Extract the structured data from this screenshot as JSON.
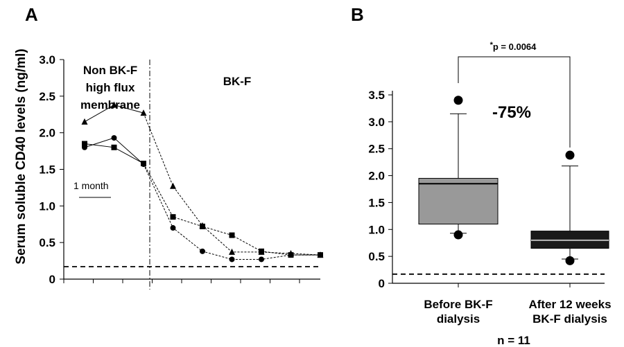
{
  "chart_data": [
    {
      "panel_label": "A",
      "type": "line",
      "ylabel": "Serum soluble CD40 levels (ng/ml)",
      "ylim": [
        0,
        3.0
      ],
      "yticks": [
        "3.0",
        "2.5",
        "2.0",
        "1.5",
        "1.0",
        "0.5",
        "0"
      ],
      "x": [
        0,
        1,
        2,
        3,
        4,
        5,
        6,
        7,
        8
      ],
      "series": [
        {
          "marker": "triangle",
          "values": [
            2.15,
            2.38,
            2.27,
            1.27,
            0.73,
            0.37,
            0.37,
            0.35,
            0.33
          ]
        },
        {
          "marker": "square",
          "values": [
            1.85,
            1.8,
            1.58,
            0.85,
            0.72,
            0.6,
            0.38,
            0.33,
            0.33
          ]
        },
        {
          "marker": "circle",
          "values": [
            1.8,
            1.93,
            1.57,
            0.7,
            0.38,
            0.27,
            0.27,
            0.33,
            0.33
          ]
        }
      ],
      "annotations": {
        "left_region": [
          "Non BK-F",
          "high flux",
          "membrane"
        ],
        "right_region": "BK-F",
        "scale_bar": "1 month"
      },
      "reference_line": 0.17
    },
    {
      "panel_label": "B",
      "type": "box",
      "ylim": [
        0,
        3.5
      ],
      "yticks": [
        "3.5",
        "3.0",
        "2.5",
        "2.0",
        "1.5",
        "1.0",
        "0.5",
        "0"
      ],
      "categories": [
        [
          "Before BK-F",
          "dialysis"
        ],
        [
          "After 12 weeks",
          "BK-F dialysis"
        ]
      ],
      "boxes": [
        {
          "whisker_low": 0.93,
          "q1": 1.1,
          "median": 1.85,
          "q3": 1.95,
          "whisker_high": 3.15,
          "outliers": [
            0.9,
            3.4
          ],
          "color": "#999999"
        },
        {
          "whisker_low": 0.45,
          "q1": 0.65,
          "median": 0.8,
          "q3": 0.97,
          "whisker_high": 2.18,
          "outliers": [
            0.42,
            2.38
          ],
          "color": "#1a1a1a"
        }
      ],
      "significance": "p = 0.0064",
      "significance_prefix": "*",
      "change_label": "-75%",
      "n_label": "n = 11",
      "reference_line": 0.17
    }
  ]
}
